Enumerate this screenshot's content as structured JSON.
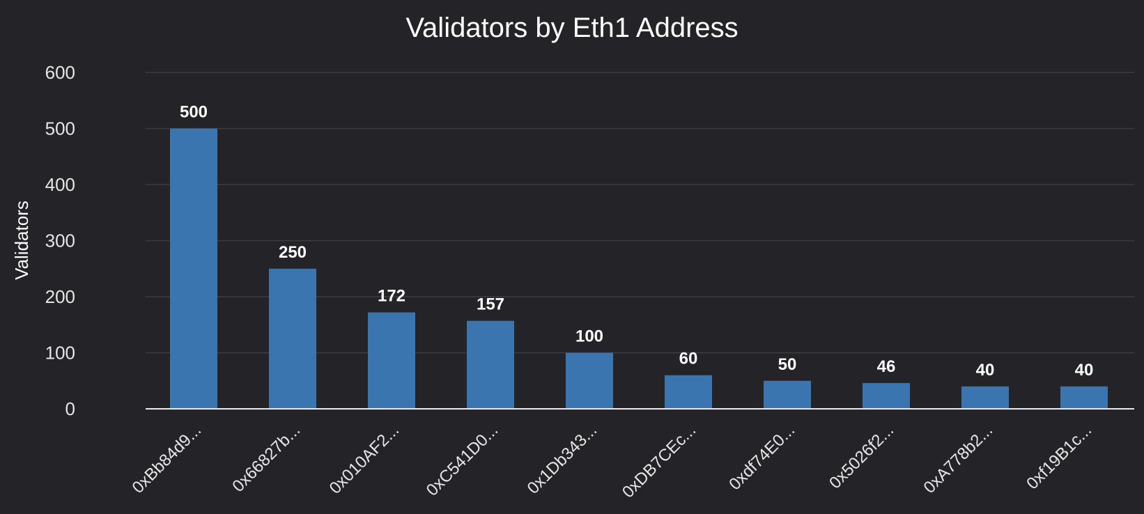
{
  "chart_data": {
    "type": "bar",
    "title": "Validators by Eth1 Address",
    "xlabel": "",
    "ylabel": "Validators",
    "categories": [
      "0xBb84d9...",
      "0x66827b...",
      "0x010AF2...",
      "0xC541D0...",
      "0x1Db343...",
      "0xDB7CEc...",
      "0xdf74E0...",
      "0x5026f2...",
      "0xA778b2...",
      "0xf19B1c..."
    ],
    "values": [
      500,
      250,
      172,
      157,
      100,
      60,
      50,
      46,
      40,
      40
    ],
    "ylim": [
      0,
      600
    ],
    "yticks": [
      0,
      100,
      200,
      300,
      400,
      500,
      600
    ],
    "grid": true,
    "data_labels": true,
    "bar_color": "#3b75af",
    "background_color": "#242328"
  }
}
